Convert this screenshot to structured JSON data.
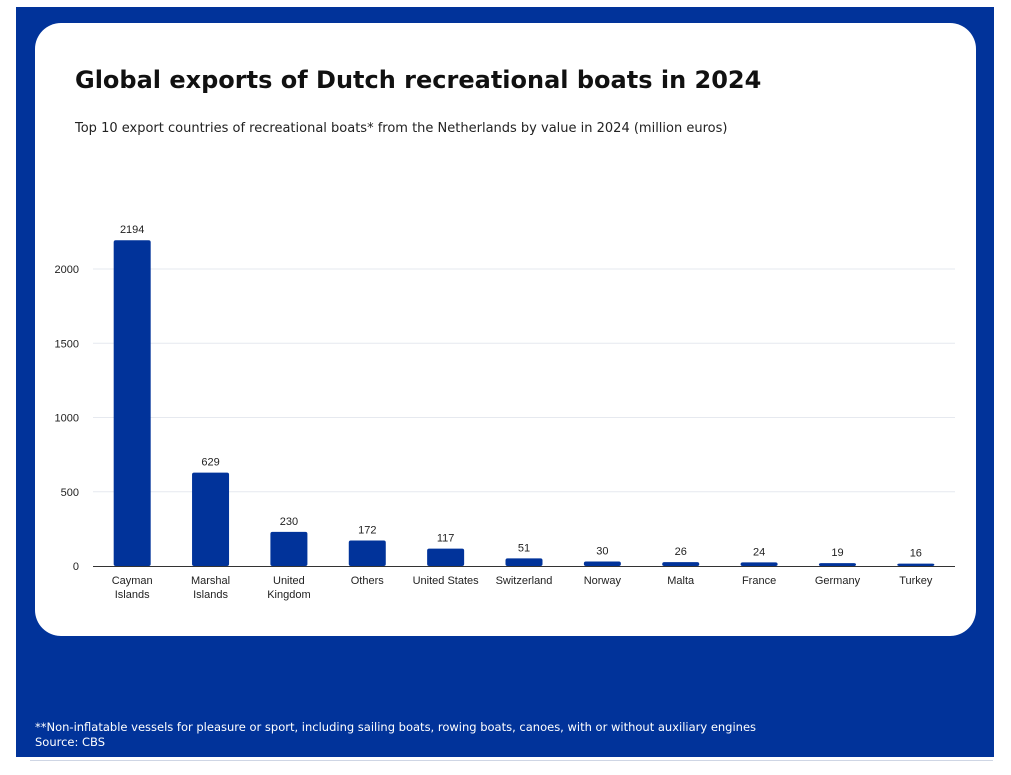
{
  "title": "Global exports of Dutch recreational boats in 2024",
  "subtitle": "Top 10 export countries of recreational boats* from the Netherlands by value in 2024 (million euros)",
  "footnote": "**Non-inflatable vessels for pleasure or sport, including sailing boats, rowing boats, canoes, with or without auxiliary engines",
  "source": "Source: CBS",
  "colors": {
    "background": "#01339a",
    "bar": "#01339a",
    "card": "#ffffff"
  },
  "chart_data": {
    "type": "bar",
    "categories": [
      [
        "Cayman",
        "Islands"
      ],
      [
        "Marshal",
        "Islands"
      ],
      [
        "United",
        "Kingdom"
      ],
      [
        "Others"
      ],
      [
        "United States"
      ],
      [
        "Switzerland"
      ],
      [
        "Norway"
      ],
      [
        "Malta"
      ],
      [
        "France"
      ],
      [
        "Germany"
      ],
      [
        "Turkey"
      ]
    ],
    "values": [
      2194,
      629,
      230,
      172,
      117,
      51,
      30,
      26,
      24,
      19,
      16
    ],
    "ylim": [
      0,
      2200
    ],
    "yticks": [
      0,
      500,
      1000,
      1500,
      2000
    ],
    "grid": true,
    "data_labels": true,
    "xlabel": "",
    "ylabel": ""
  }
}
